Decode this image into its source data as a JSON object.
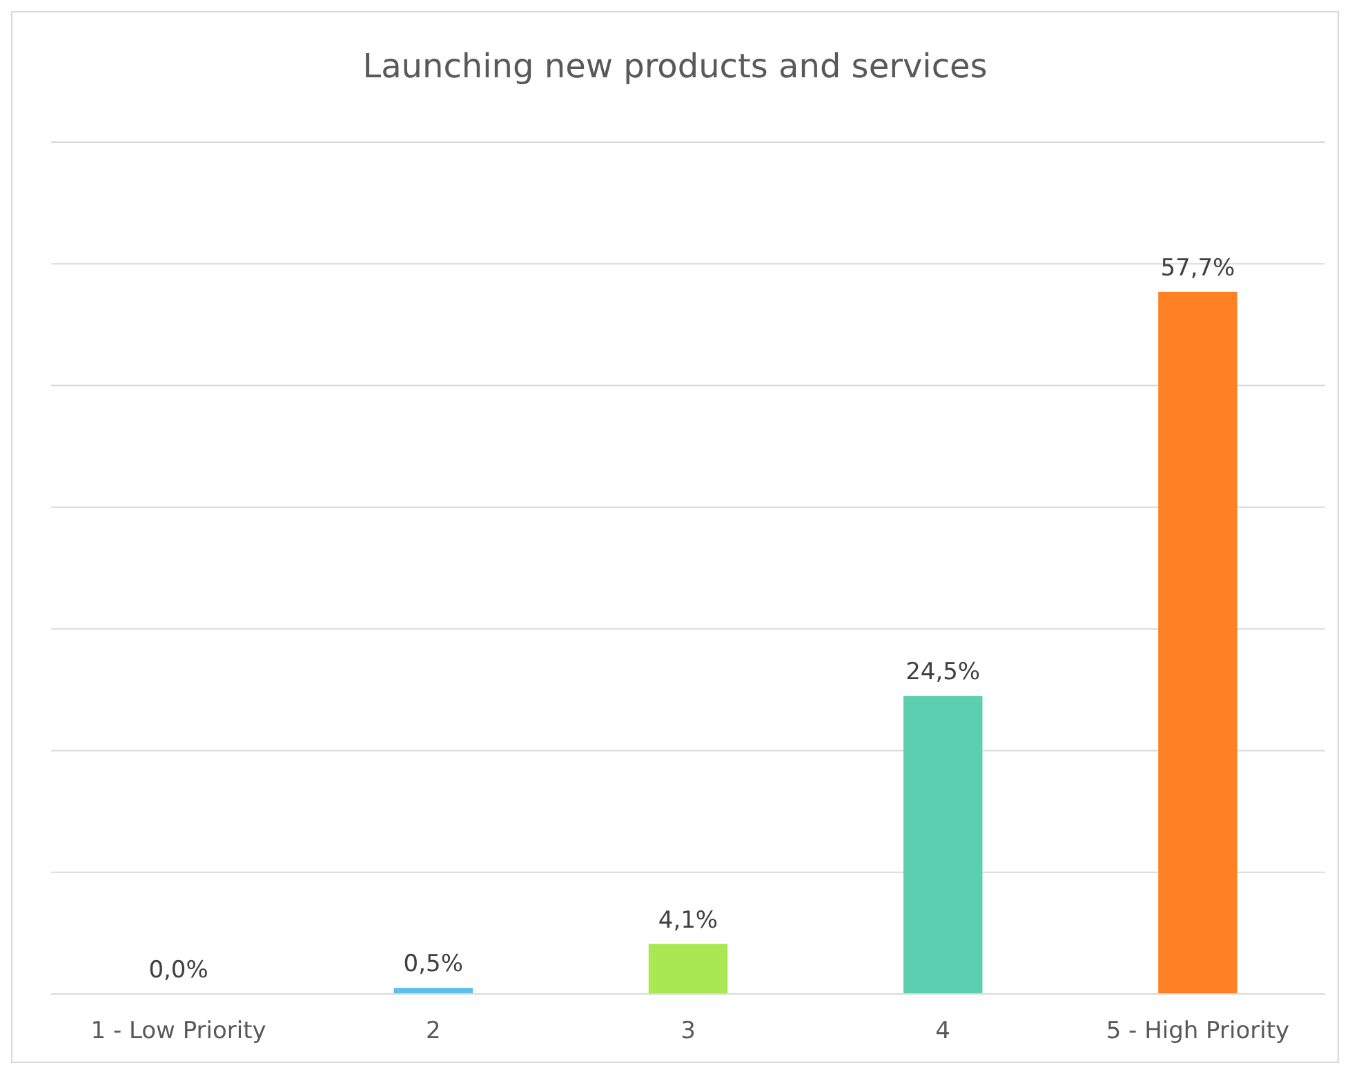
{
  "chart_data": {
    "type": "bar",
    "title": "Launching new products and services",
    "categories": [
      "1 - Low Priority",
      "2",
      "3",
      "4",
      "5 - High Priority"
    ],
    "values": [
      0.0,
      0.5,
      4.1,
      24.5,
      57.7
    ],
    "colors": [
      "#5b9bd5",
      "#5bbfea",
      "#a9e851",
      "#5ccfb1",
      "#ff8124"
    ],
    "value_labels": [
      "0,0%",
      "0,5%",
      "4,1%",
      "24,5%",
      "57,7%"
    ],
    "ylim": [
      0,
      70
    ],
    "yticks": [
      {
        "value": 0,
        "label": null
      },
      {
        "value": 10,
        "label": null
      },
      {
        "value": 20,
        "label": null
      },
      {
        "value": 30,
        "label": null
      },
      {
        "value": 40,
        "label": null
      },
      {
        "value": 50,
        "label": null
      },
      {
        "value": 60,
        "label": null
      },
      {
        "value": 70,
        "label": null
      }
    ],
    "tick_labels": "x",
    "grid": "y"
  }
}
